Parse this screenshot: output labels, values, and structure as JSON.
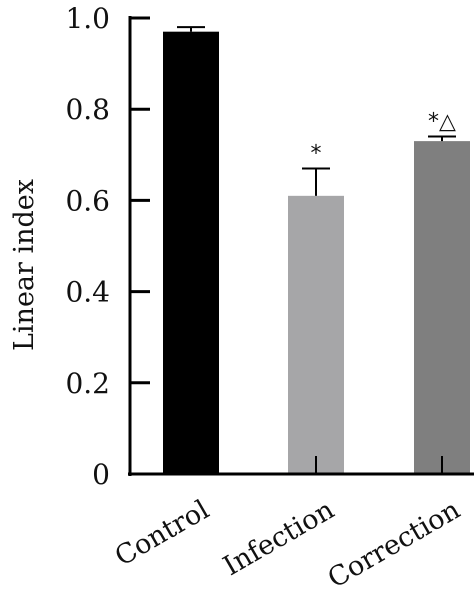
{
  "chart_data": {
    "type": "bar",
    "categories": [
      "Control",
      "Infection",
      "Correction"
    ],
    "values": [
      0.97,
      0.61,
      0.73
    ],
    "errors": [
      0.01,
      0.06,
      0.01
    ],
    "annotations": [
      "",
      "*",
      "*△"
    ],
    "colors": [
      "#000000",
      "#a6a6a8",
      "#7f7f7f"
    ],
    "title": "",
    "xlabel": "",
    "ylabel": "Linear index",
    "ylim": [
      0,
      1.0
    ],
    "yticks": [
      0,
      0.2,
      0.4,
      0.6,
      0.8,
      1.0
    ],
    "ytick_labels": [
      "0",
      "0.2",
      "0.4",
      "0.6",
      "0.8",
      "1.0"
    ],
    "grid": false,
    "legend": "none"
  }
}
